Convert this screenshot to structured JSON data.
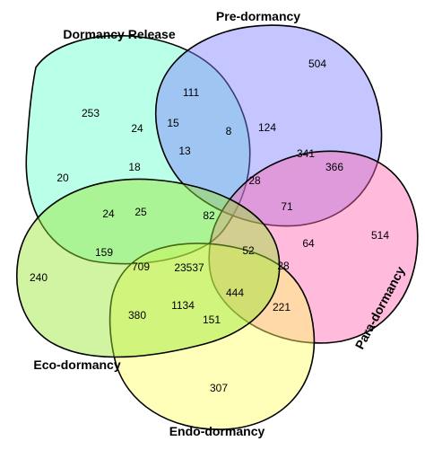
{
  "sets": [
    {
      "key": "dormancy_release",
      "label": "Dormancy Release",
      "color": "#66ffcc"
    },
    {
      "key": "pre_dormancy",
      "label": "Pre-dormancy",
      "color": "#7f7fff"
    },
    {
      "key": "para_dormancy",
      "label": "Para-dormancy",
      "color": "#ff66b2"
    },
    {
      "key": "endo_dormancy",
      "label": "Endo-dormancy",
      "color": "#ffff66"
    },
    {
      "key": "eco_dormancy",
      "label": "Eco-dormancy",
      "color": "#99e633"
    }
  ],
  "counts": [
    "253",
    "504",
    "514",
    "307",
    "240",
    "111",
    "24",
    "15",
    "8",
    "124",
    "13",
    "341",
    "366",
    "20",
    "18",
    "28",
    "71",
    "82",
    "24",
    "25",
    "159",
    "709",
    "23537",
    "52",
    "64",
    "28",
    "380",
    "1134",
    "444",
    "221",
    "151"
  ]
}
